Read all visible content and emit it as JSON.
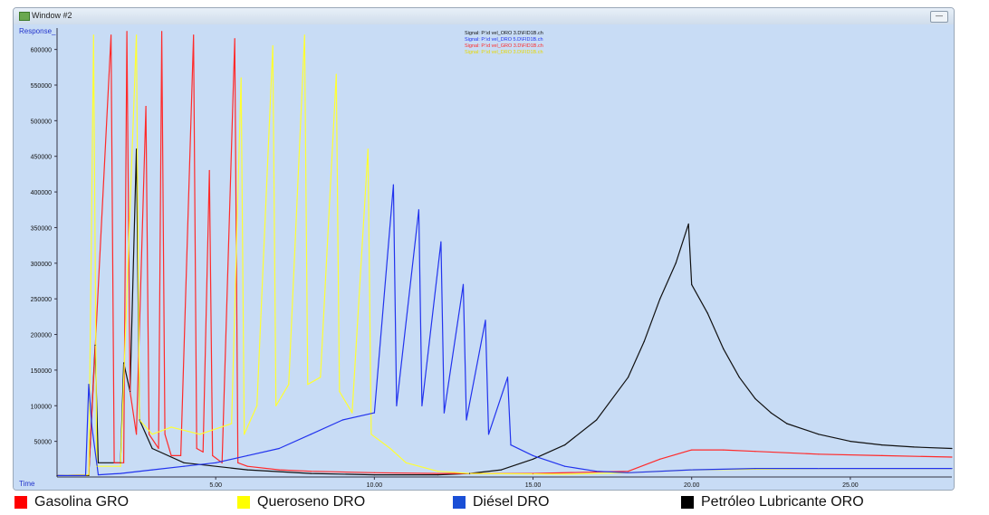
{
  "window": {
    "title": "Window #2",
    "button": "—"
  },
  "chart_data": {
    "type": "line",
    "ylabel": "Response_",
    "xlabel": "Time",
    "xlim": [
      0,
      28.2
    ],
    "ylim": [
      0,
      630000
    ],
    "x_ticks": [
      5,
      10,
      15,
      20,
      25
    ],
    "x_tick_labels": [
      "5.00",
      "10.00",
      "15.00",
      "20.00",
      "25.00"
    ],
    "y_ticks": [
      50000,
      100000,
      150000,
      200000,
      250000,
      300000,
      350000,
      400000,
      450000,
      500000,
      550000,
      600000
    ],
    "y_tick_labels": [
      "50000",
      "100000",
      "150000",
      "200000",
      "250000",
      "300000",
      "350000",
      "400000",
      "450000",
      "500000",
      "550000",
      "600000"
    ],
    "signal_labels": [
      "Signal: P:\\d vel_ORO 3.D\\FID1B.ch",
      "Signal: P:\\d vel_DRO 5.D\\FID1B.ch",
      "Signal: P:\\d vel_GRO 3.D\\FID1B.ch",
      "Signal: P:\\d vel_DRO 3.D\\FID1B.ch"
    ],
    "series": [
      {
        "name": "Gasolina GRO",
        "color": "#ff2a2a",
        "points": [
          [
            0,
            2000
          ],
          [
            1.0,
            3000
          ],
          [
            1.7,
            620000
          ],
          [
            1.8,
            20000
          ],
          [
            2.1,
            20000
          ],
          [
            2.2,
            625000
          ],
          [
            2.3,
            120000
          ],
          [
            2.5,
            60000
          ],
          [
            2.8,
            520000
          ],
          [
            2.9,
            60000
          ],
          [
            3.2,
            40000
          ],
          [
            3.3,
            625000
          ],
          [
            3.4,
            60000
          ],
          [
            3.6,
            30000
          ],
          [
            3.9,
            30000
          ],
          [
            4.3,
            620000
          ],
          [
            4.4,
            40000
          ],
          [
            4.6,
            35000
          ],
          [
            4.8,
            430000
          ],
          [
            4.9,
            30000
          ],
          [
            5.2,
            20000
          ],
          [
            5.6,
            615000
          ],
          [
            5.7,
            20000
          ],
          [
            6.0,
            15000
          ],
          [
            7.0,
            10000
          ],
          [
            8.0,
            8000
          ],
          [
            10.0,
            6000
          ],
          [
            12.0,
            5000
          ],
          [
            15.0,
            5000
          ],
          [
            18.0,
            8000
          ],
          [
            19.0,
            25000
          ],
          [
            20.0,
            38000
          ],
          [
            21.0,
            38000
          ],
          [
            22.0,
            36000
          ],
          [
            24.0,
            32000
          ],
          [
            26.0,
            30000
          ],
          [
            28.2,
            28000
          ]
        ]
      },
      {
        "name": "Queroseno DRO",
        "color": "#ffff33",
        "points": [
          [
            0,
            2000
          ],
          [
            1.0,
            3000
          ],
          [
            1.15,
            620000
          ],
          [
            1.25,
            15000
          ],
          [
            2.0,
            15000
          ],
          [
            2.5,
            620000
          ],
          [
            2.6,
            80000
          ],
          [
            3.0,
            60000
          ],
          [
            3.6,
            70000
          ],
          [
            4.5,
            60000
          ],
          [
            5.5,
            75000
          ],
          [
            5.8,
            560000
          ],
          [
            5.9,
            60000
          ],
          [
            6.3,
            100000
          ],
          [
            6.8,
            605000
          ],
          [
            6.9,
            100000
          ],
          [
            7.3,
            130000
          ],
          [
            7.8,
            620000
          ],
          [
            7.9,
            130000
          ],
          [
            8.3,
            140000
          ],
          [
            8.8,
            565000
          ],
          [
            8.9,
            120000
          ],
          [
            9.3,
            90000
          ],
          [
            9.8,
            460000
          ],
          [
            9.9,
            60000
          ],
          [
            10.5,
            40000
          ],
          [
            11.0,
            20000
          ],
          [
            12.0,
            8000
          ],
          [
            13.0,
            5000
          ],
          [
            16.0,
            4000
          ],
          [
            18.0,
            6000
          ],
          [
            20.0,
            10000
          ],
          [
            24.0,
            12000
          ],
          [
            28.2,
            12000
          ]
        ]
      },
      {
        "name": "Diésel DRO",
        "color": "#2233ee",
        "points": [
          [
            0,
            2000
          ],
          [
            0.9,
            2000
          ],
          [
            1.0,
            130000
          ],
          [
            1.1,
            70000
          ],
          [
            1.3,
            3000
          ],
          [
            2.0,
            5000
          ],
          [
            3.0,
            10000
          ],
          [
            4.0,
            15000
          ],
          [
            5.0,
            20000
          ],
          [
            6.0,
            30000
          ],
          [
            7.0,
            40000
          ],
          [
            8.0,
            60000
          ],
          [
            9.0,
            80000
          ],
          [
            10.0,
            90000
          ],
          [
            10.6,
            410000
          ],
          [
            10.7,
            100000
          ],
          [
            11.4,
            375000
          ],
          [
            11.5,
            100000
          ],
          [
            12.1,
            330000
          ],
          [
            12.2,
            90000
          ],
          [
            12.8,
            270000
          ],
          [
            12.9,
            80000
          ],
          [
            13.5,
            220000
          ],
          [
            13.6,
            60000
          ],
          [
            14.2,
            140000
          ],
          [
            14.3,
            45000
          ],
          [
            15.0,
            30000
          ],
          [
            16.0,
            15000
          ],
          [
            17.0,
            8000
          ],
          [
            18.0,
            6000
          ],
          [
            20.0,
            10000
          ],
          [
            22.0,
            12000
          ],
          [
            24.0,
            12000
          ],
          [
            28.2,
            12000
          ]
        ]
      },
      {
        "name": "Petróleo Lubricante ORO",
        "color": "#111111",
        "points": [
          [
            0,
            2000
          ],
          [
            1.0,
            2000
          ],
          [
            1.2,
            185000
          ],
          [
            1.3,
            20000
          ],
          [
            2.0,
            20000
          ],
          [
            2.1,
            160000
          ],
          [
            2.3,
            120000
          ],
          [
            2.5,
            460000
          ],
          [
            2.6,
            80000
          ],
          [
            3.0,
            40000
          ],
          [
            4.0,
            20000
          ],
          [
            6.0,
            10000
          ],
          [
            8.0,
            5000
          ],
          [
            10.0,
            3000
          ],
          [
            12.0,
            3000
          ],
          [
            13.0,
            5000
          ],
          [
            14.0,
            10000
          ],
          [
            15.0,
            25000
          ],
          [
            16.0,
            45000
          ],
          [
            17.0,
            80000
          ],
          [
            18.0,
            140000
          ],
          [
            18.5,
            190000
          ],
          [
            19.0,
            250000
          ],
          [
            19.5,
            300000
          ],
          [
            19.9,
            355000
          ],
          [
            20.0,
            270000
          ],
          [
            20.5,
            230000
          ],
          [
            21.0,
            180000
          ],
          [
            21.5,
            140000
          ],
          [
            22.0,
            110000
          ],
          [
            22.5,
            90000
          ],
          [
            23.0,
            75000
          ],
          [
            24.0,
            60000
          ],
          [
            25.0,
            50000
          ],
          [
            26.0,
            45000
          ],
          [
            27.0,
            42000
          ],
          [
            28.2,
            40000
          ]
        ]
      }
    ]
  },
  "legend": [
    {
      "label": "Gasolina GRO",
      "color": "#ff0000"
    },
    {
      "label": "Queroseno DRO",
      "color": "#ffff00"
    },
    {
      "label": "Diésel DRO",
      "color": "#1a4fd6"
    },
    {
      "label": "Petróleo Lubricante ORO",
      "color": "#000000"
    }
  ]
}
